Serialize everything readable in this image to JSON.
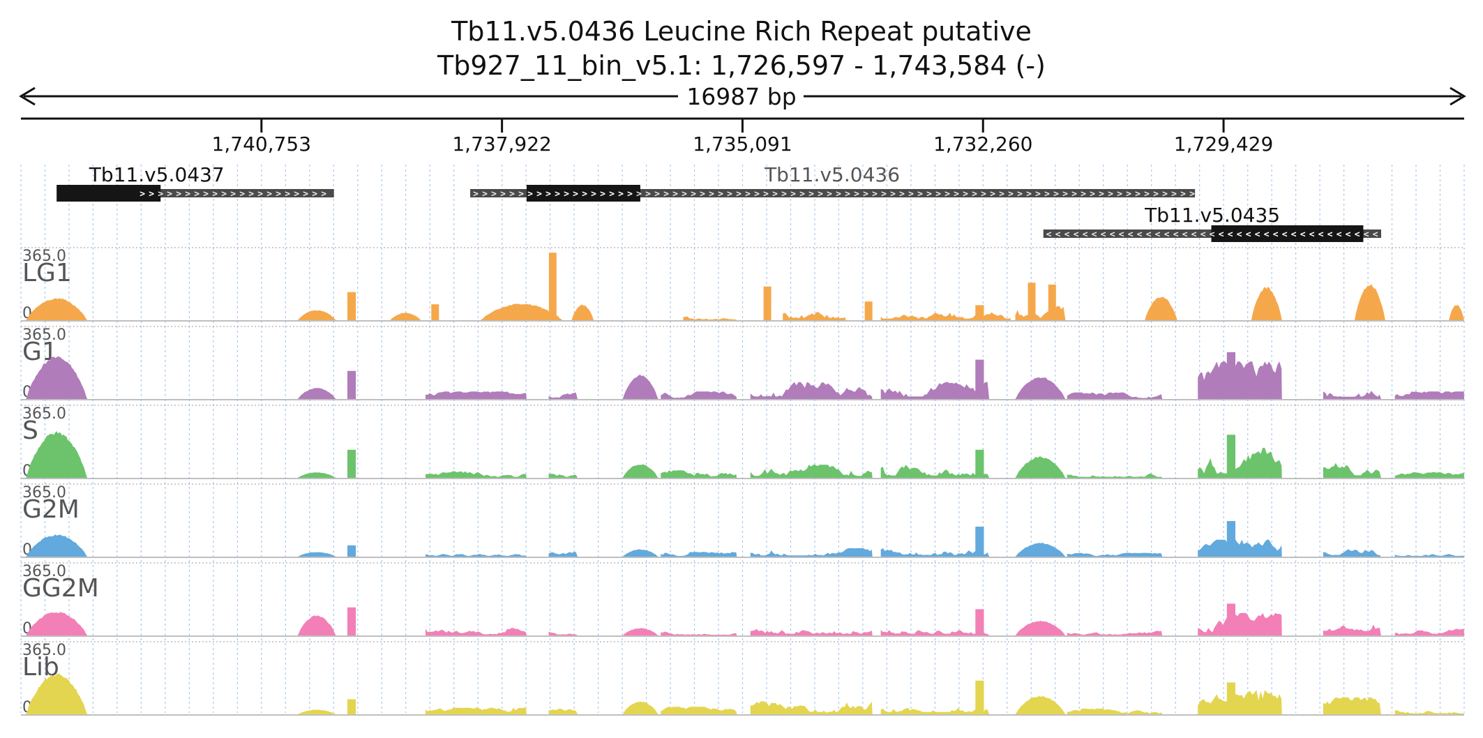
{
  "chart_data": {
    "type": "area",
    "title": "Tb11.v5.0436  Leucine Rich Repeat  putative",
    "subtitle": "Tb927_11_bin_v5.1: 1,726,597 - 1,743,584 (-)",
    "span_label": "16987 bp",
    "region": {
      "start": 1726597,
      "end": 1743584,
      "strand": "-"
    },
    "ticks": [
      {
        "pos": 1740753,
        "label": "1,740,753"
      },
      {
        "pos": 1737922,
        "label": "1,737,922"
      },
      {
        "pos": 1735091,
        "label": "1,735,091"
      },
      {
        "pos": 1732260,
        "label": "1,732,260"
      },
      {
        "pos": 1729429,
        "label": "1,729,429"
      }
    ],
    "genes": [
      {
        "name": "Tb11.v5.0437",
        "strand": "+",
        "start": 1739900,
        "end": 1742219,
        "cds_start": 1741940,
        "cds_end": 1743164,
        "label_color": "#111111",
        "label_pos": 1741985,
        "row": 0
      },
      {
        "name": "Tb11.v5.0436",
        "strand": "+",
        "start": 1729765,
        "end": 1738296,
        "cds_start": 1736294,
        "cds_end": 1737632,
        "label_color": "#555555",
        "label_pos": 1734035,
        "row": 0
      },
      {
        "name": "Tb11.v5.0435",
        "strand": "-",
        "start": 1727574,
        "end": 1731550,
        "cds_start": 1727784,
        "cds_end": 1729573,
        "label_color": "#111111",
        "label_pos": 1729560,
        "row": 1
      }
    ],
    "grid": true,
    "tracks": [
      {
        "name": "LG1",
        "color": "#f5a84b",
        "ymax": 365.0,
        "max_label": "365.0",
        "min_label": "0"
      },
      {
        "name": "G1",
        "color": "#b07cba",
        "ymax": 365.0,
        "max_label": "365.0",
        "min_label": "0"
      },
      {
        "name": "S",
        "color": "#6cc36c",
        "ymax": 365.0,
        "max_label": "365.0",
        "min_label": "0"
      },
      {
        "name": "G2M",
        "color": "#62a9dd",
        "ymax": 365.0,
        "max_label": "365.0",
        "min_label": "0"
      },
      {
        "name": "GG2M",
        "color": "#f27fb5",
        "ymax": 365.0,
        "max_label": "365.0",
        "min_label": "0"
      },
      {
        "name": "Lib",
        "color": "#e3d54f",
        "ymax": 365.0,
        "max_label": "365.0",
        "min_label": "0"
      }
    ],
    "coverage": {
      "LG1": [
        [
          1742804,
          1743524,
          120,
          "hump"
        ],
        [
          1739877,
          1740327,
          55,
          "hump"
        ],
        [
          1739642,
          1739742,
          150,
          "bar"
        ],
        [
          1738877,
          1739237,
          40,
          "hump"
        ],
        [
          1738664,
          1738754,
          85,
          "bar"
        ],
        [
          1737212,
          1738172,
          90,
          "hump"
        ],
        [
          1737280,
          1737370,
          360,
          "bar"
        ],
        [
          1736843,
          1737103,
          85,
          "hump"
        ],
        [
          1735158,
          1735788,
          25,
          "noise"
        ],
        [
          1734753,
          1734843,
          180,
          "bar"
        ],
        [
          1733877,
          1734617,
          75,
          "noise"
        ],
        [
          1733562,
          1733652,
          100,
          "bar"
        ],
        [
          1731933,
          1733463,
          55,
          "noise"
        ],
        [
          1732250,
          1732350,
          80,
          "bar"
        ],
        [
          1731290,
          1731880,
          75,
          "noise"
        ],
        [
          1731402,
          1731492,
          190,
          "bar"
        ],
        [
          1731642,
          1731732,
          200,
          "bar"
        ],
        [
          1729975,
          1730355,
          130,
          "hump"
        ],
        [
          1728742,
          1729102,
          180,
          "hump"
        ],
        [
          1727526,
          1727886,
          195,
          "hump"
        ],
        [
          1726597,
          1726777,
          85,
          "hump"
        ]
      ],
      "G1": [
        [
          1742804,
          1743524,
          230,
          "hump"
        ],
        [
          1739877,
          1740327,
          60,
          "hump"
        ],
        [
          1739642,
          1739742,
          150,
          "bar"
        ],
        [
          1737632,
          1738822,
          40,
          "noise"
        ],
        [
          1737032,
          1737372,
          45,
          "noise"
        ],
        [
          1736083,
          1736503,
          130,
          "hump"
        ],
        [
          1735158,
          1736053,
          40,
          "noise"
        ],
        [
          1733562,
          1734998,
          90,
          "noise"
        ],
        [
          1732187,
          1733463,
          90,
          "noise"
        ],
        [
          1732250,
          1732350,
          210,
          "bar"
        ],
        [
          1731290,
          1731880,
          120,
          "hump"
        ],
        [
          1730150,
          1731270,
          35,
          "noise"
        ],
        [
          1728742,
          1729732,
          200,
          "noise"
        ],
        [
          1729290,
          1729390,
          250,
          "bar"
        ],
        [
          1727576,
          1728256,
          80,
          "noise"
        ],
        [
          1726597,
          1727412,
          40,
          "noise"
        ]
      ],
      "S": [
        [
          1742804,
          1743524,
          250,
          "hump"
        ],
        [
          1739877,
          1740327,
          30,
          "hump"
        ],
        [
          1739642,
          1739742,
          150,
          "bar"
        ],
        [
          1737632,
          1738822,
          35,
          "noise"
        ],
        [
          1737032,
          1737372,
          35,
          "noise"
        ],
        [
          1736083,
          1736503,
          75,
          "hump"
        ],
        [
          1735158,
          1736053,
          40,
          "noise"
        ],
        [
          1733562,
          1734998,
          70,
          "noise"
        ],
        [
          1732187,
          1733463,
          80,
          "noise"
        ],
        [
          1732250,
          1732350,
          150,
          "bar"
        ],
        [
          1731290,
          1731880,
          115,
          "hump"
        ],
        [
          1730150,
          1731270,
          35,
          "noise"
        ],
        [
          1728742,
          1729732,
          160,
          "noise"
        ],
        [
          1729290,
          1729390,
          230,
          "bar"
        ],
        [
          1727576,
          1728256,
          90,
          "noise"
        ],
        [
          1726597,
          1727412,
          30,
          "noise"
        ]
      ],
      "G2M": [
        [
          1742804,
          1743524,
          120,
          "hump"
        ],
        [
          1739877,
          1740327,
          25,
          "hump"
        ],
        [
          1739642,
          1739742,
          60,
          "bar"
        ],
        [
          1737632,
          1738822,
          25,
          "noise"
        ],
        [
          1737032,
          1737372,
          25,
          "noise"
        ],
        [
          1736083,
          1736503,
          40,
          "hump"
        ],
        [
          1735158,
          1736053,
          25,
          "noise"
        ],
        [
          1733562,
          1734998,
          45,
          "noise"
        ],
        [
          1732187,
          1733463,
          60,
          "noise"
        ],
        [
          1732250,
          1732350,
          160,
          "bar"
        ],
        [
          1731290,
          1731880,
          75,
          "hump"
        ],
        [
          1730150,
          1731270,
          20,
          "noise"
        ],
        [
          1728742,
          1729732,
          90,
          "noise"
        ],
        [
          1729290,
          1729390,
          190,
          "bar"
        ],
        [
          1727576,
          1728256,
          55,
          "noise"
        ],
        [
          1726597,
          1727412,
          25,
          "noise"
        ]
      ],
      "GG2M": [
        [
          1742804,
          1743524,
          130,
          "hump"
        ],
        [
          1739877,
          1740327,
          110,
          "hump"
        ],
        [
          1739642,
          1739742,
          150,
          "bar"
        ],
        [
          1737632,
          1738822,
          40,
          "noise"
        ],
        [
          1737032,
          1737372,
          35,
          "noise"
        ],
        [
          1736083,
          1736503,
          40,
          "hump"
        ],
        [
          1735158,
          1736053,
          25,
          "noise"
        ],
        [
          1733562,
          1734998,
          55,
          "noise"
        ],
        [
          1732187,
          1733463,
          60,
          "noise"
        ],
        [
          1732250,
          1732350,
          140,
          "bar"
        ],
        [
          1731290,
          1731880,
          80,
          "hump"
        ],
        [
          1730150,
          1731270,
          25,
          "noise"
        ],
        [
          1728742,
          1729732,
          120,
          "noise"
        ],
        [
          1729290,
          1729390,
          170,
          "bar"
        ],
        [
          1727576,
          1728256,
          60,
          "noise"
        ],
        [
          1726597,
          1727412,
          35,
          "noise"
        ]
      ],
      "Lib": [
        [
          1742804,
          1743524,
          220,
          "hump"
        ],
        [
          1739877,
          1740327,
          25,
          "hump"
        ],
        [
          1739642,
          1739742,
          80,
          "bar"
        ],
        [
          1737632,
          1738822,
          35,
          "noise"
        ],
        [
          1737032,
          1737372,
          30,
          "noise"
        ],
        [
          1736083,
          1736503,
          70,
          "hump"
        ],
        [
          1735158,
          1736053,
          40,
          "noise"
        ],
        [
          1733562,
          1734998,
          70,
          "noise"
        ],
        [
          1732187,
          1733463,
          80,
          "noise"
        ],
        [
          1732250,
          1732350,
          180,
          "bar"
        ],
        [
          1731290,
          1731880,
          100,
          "hump"
        ],
        [
          1730150,
          1731270,
          30,
          "noise"
        ],
        [
          1728742,
          1729732,
          130,
          "noise"
        ],
        [
          1729290,
          1729390,
          170,
          "bar"
        ],
        [
          1727576,
          1728256,
          90,
          "noise"
        ],
        [
          1726597,
          1727412,
          30,
          "noise"
        ]
      ]
    }
  }
}
